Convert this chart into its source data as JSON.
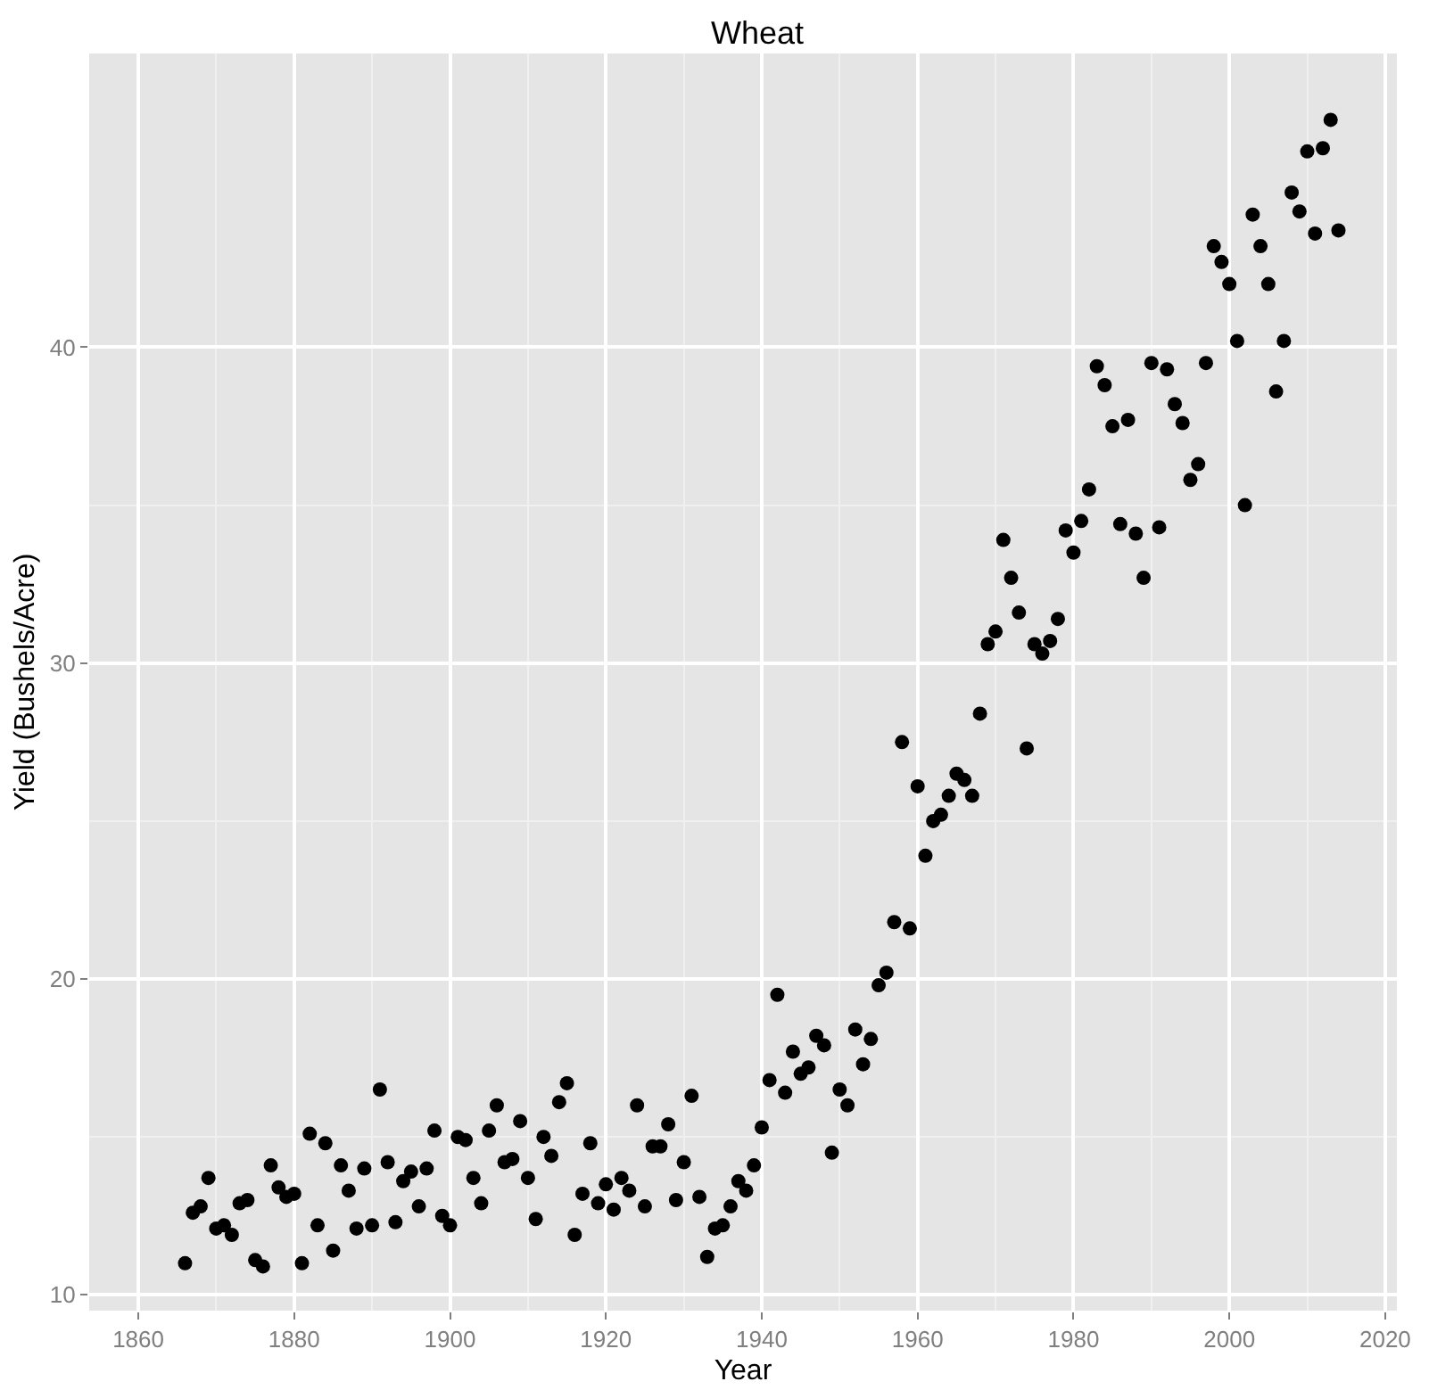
{
  "chart_data": {
    "type": "scatter",
    "title": "Wheat",
    "xlabel": "Year",
    "ylabel": "Yield (Bushels/Acre)",
    "x": [
      1866,
      1867,
      1868,
      1869,
      1870,
      1871,
      1872,
      1873,
      1874,
      1875,
      1876,
      1877,
      1878,
      1879,
      1880,
      1881,
      1882,
      1883,
      1884,
      1885,
      1886,
      1887,
      1888,
      1889,
      1890,
      1891,
      1892,
      1893,
      1894,
      1895,
      1896,
      1897,
      1898,
      1899,
      1900,
      1901,
      1902,
      1903,
      1904,
      1905,
      1906,
      1907,
      1908,
      1909,
      1910,
      1911,
      1912,
      1913,
      1914,
      1915,
      1916,
      1917,
      1918,
      1919,
      1920,
      1921,
      1922,
      1923,
      1924,
      1925,
      1926,
      1927,
      1928,
      1929,
      1930,
      1931,
      1932,
      1933,
      1934,
      1935,
      1936,
      1937,
      1938,
      1939,
      1940,
      1941,
      1942,
      1943,
      1944,
      1945,
      1946,
      1947,
      1948,
      1949,
      1950,
      1951,
      1952,
      1953,
      1954,
      1955,
      1956,
      1957,
      1958,
      1959,
      1960,
      1961,
      1962,
      1963,
      1964,
      1965,
      1966,
      1967,
      1968,
      1969,
      1970,
      1971,
      1972,
      1973,
      1974,
      1975,
      1976,
      1977,
      1978,
      1979,
      1980,
      1981,
      1982,
      1983,
      1984,
      1985,
      1986,
      1987,
      1988,
      1989,
      1990,
      1991,
      1992,
      1993,
      1994,
      1995,
      1996,
      1997,
      1998,
      1999,
      2000,
      2001,
      2002,
      2003,
      2004,
      2005,
      2006,
      2007,
      2008,
      2009,
      2010,
      2011,
      2012,
      2013,
      2014
    ],
    "series": [
      {
        "color": "#000000",
        "values": [
          11.0,
          12.6,
          12.8,
          13.7,
          12.1,
          12.2,
          11.9,
          12.9,
          13.0,
          11.1,
          10.9,
          14.1,
          13.4,
          13.1,
          13.2,
          11.0,
          15.1,
          12.2,
          14.8,
          11.4,
          14.1,
          13.3,
          12.1,
          14.0,
          12.2,
          16.5,
          14.2,
          12.3,
          13.6,
          13.9,
          12.8,
          14.0,
          15.2,
          12.5,
          12.2,
          15.0,
          14.9,
          13.7,
          12.9,
          15.2,
          16.0,
          14.2,
          14.3,
          15.5,
          13.7,
          12.4,
          15.0,
          14.4,
          16.1,
          16.7,
          11.9,
          13.2,
          14.8,
          12.9,
          13.5,
          12.7,
          13.7,
          13.3,
          16.0,
          12.8,
          14.7,
          14.7,
          15.4,
          13.0,
          14.2,
          16.3,
          13.1,
          11.2,
          12.1,
          12.2,
          12.8,
          13.6,
          13.3,
          14.1,
          15.3,
          16.8,
          19.5,
          16.4,
          17.7,
          17.0,
          17.2,
          18.2,
          17.9,
          14.5,
          16.5,
          16.0,
          18.4,
          17.3,
          18.1,
          19.8,
          20.2,
          21.8,
          27.5,
          21.6,
          26.1,
          23.9,
          25.0,
          25.2,
          25.8,
          26.5,
          26.3,
          25.8,
          28.4,
          30.6,
          31.0,
          33.9,
          32.7,
          31.6,
          27.3,
          30.6,
          30.3,
          30.7,
          31.4,
          34.2,
          33.5,
          34.5,
          35.5,
          39.4,
          38.8,
          37.5,
          34.4,
          37.7,
          34.1,
          32.7,
          39.5,
          34.3,
          39.3,
          38.2,
          37.6,
          35.8,
          36.3,
          39.5,
          43.2,
          42.7,
          42.0,
          40.2,
          35.0,
          44.2,
          43.2,
          42.0,
          38.6,
          40.2,
          44.9,
          44.3,
          46.2,
          43.6,
          46.3,
          47.2,
          43.7
        ]
      }
    ],
    "xlim": [
      1853.7,
      2021.5
    ],
    "ylim": [
      9.5,
      49.3
    ],
    "xticks": [
      1860,
      1880,
      1900,
      1920,
      1940,
      1960,
      1980,
      2000,
      2020
    ],
    "yticks": [
      10,
      20,
      30,
      40
    ],
    "grid": true,
    "marker": "circle"
  }
}
